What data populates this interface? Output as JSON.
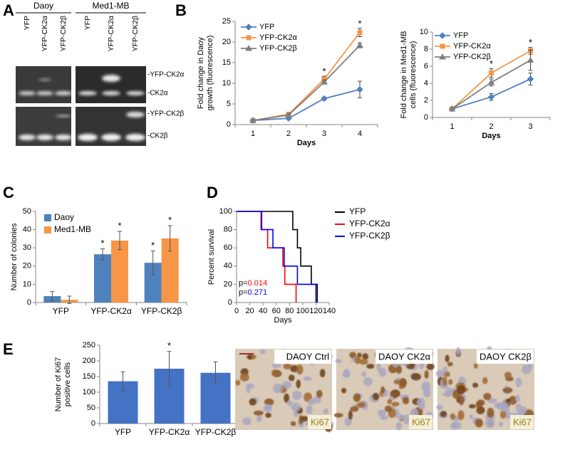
{
  "panel_labels": [
    "A",
    "B",
    "C",
    "D",
    "E"
  ],
  "blot": {
    "groups": [
      "Daoy",
      "Med1-MB"
    ],
    "lanes": [
      "YFP",
      "YFP-CK2α",
      "YFP-CK2β"
    ],
    "bands": [
      "-YFP-CK2α",
      "-CK2α",
      "-YFP-CK2β",
      "-CK2β"
    ]
  },
  "chart_data": [
    {
      "type": "line",
      "ylabel": [
        "Fold change in Daoy",
        "growth (fluorescence)"
      ],
      "xlabel": "Days",
      "categories": [
        "1",
        "2",
        "3",
        "4"
      ],
      "ylim": [
        0,
        25
      ],
      "yticks": [
        0,
        5,
        10,
        15,
        20,
        25
      ],
      "series": [
        {
          "name": "YFP",
          "color": "#4f81bd",
          "marker": "diamond",
          "values": [
            1,
            1.5,
            6.3,
            8.5
          ],
          "errors": [
            0.2,
            0.2,
            0.3,
            2
          ]
        },
        {
          "name": "YFP-CK2α",
          "color": "#f79646",
          "marker": "square",
          "values": [
            1,
            2.5,
            11,
            22.3
          ],
          "errors": [
            0.2,
            0.3,
            0.7,
            1
          ]
        },
        {
          "name": "YFP-CK2β",
          "color": "#7f7f7f",
          "marker": "triangle",
          "values": [
            1,
            2.3,
            10.3,
            19.2
          ],
          "errors": [
            0.2,
            0.3,
            0.5,
            0.6
          ]
        }
      ],
      "stars": [
        null,
        null,
        "*",
        "*"
      ]
    },
    {
      "type": "line",
      "ylabel": [
        "Fold change in Med1-MB",
        "cells (fluorescence)"
      ],
      "xlabel": "Days",
      "categories": [
        "1",
        "2",
        "3"
      ],
      "ylim": [
        0,
        10
      ],
      "yticks": [
        0,
        2,
        4,
        6,
        8,
        10
      ],
      "series": [
        {
          "name": "YFP",
          "color": "#4f81bd",
          "marker": "diamond",
          "values": [
            1,
            2.4,
            4.5
          ],
          "errors": [
            0.1,
            0.4,
            0.7
          ]
        },
        {
          "name": "YFP-CK2α",
          "color": "#f79646",
          "marker": "square",
          "values": [
            1,
            5.2,
            7.8
          ],
          "errors": [
            0.1,
            0.5,
            0.4
          ]
        },
        {
          "name": "YFP-CK2β",
          "color": "#7f7f7f",
          "marker": "triangle",
          "values": [
            1,
            4.1,
            6.7
          ],
          "errors": [
            0.1,
            0.4,
            1.2
          ]
        }
      ],
      "stars": [
        null,
        "*",
        "*"
      ]
    },
    {
      "type": "bar",
      "ylabel": [
        "Number of colonies"
      ],
      "categories": [
        "YFP",
        "YFP-CK2α",
        "YFP-CK2β"
      ],
      "ylim": [
        0,
        50
      ],
      "yticks": [
        0,
        10,
        20,
        30,
        40,
        50
      ],
      "series": [
        {
          "name": "Daoy",
          "color": "#4f81bd",
          "values": [
            3.5,
            26.5,
            21.8
          ],
          "errors": [
            2.5,
            3,
            6.5
          ],
          "stars": [
            null,
            "*",
            "*"
          ]
        },
        {
          "name": "Med1-MB",
          "color": "#f79646",
          "values": [
            1.5,
            34,
            35.2
          ],
          "errors": [
            2,
            5,
            7
          ],
          "stars": [
            null,
            "*",
            "*"
          ]
        }
      ]
    },
    {
      "type": "step",
      "ylabel": [
        "Percent survival"
      ],
      "xlabel": "Days",
      "xlim": [
        0,
        140
      ],
      "xticks": [
        0,
        20,
        40,
        60,
        80,
        100,
        120,
        140
      ],
      "ylim": [
        0,
        100
      ],
      "yticks": [
        0,
        20,
        40,
        60,
        80,
        100
      ],
      "series": [
        {
          "name": "YFP",
          "color": "#000000",
          "x": [
            0,
            85,
            92,
            97,
            113,
            122
          ],
          "values": [
            100,
            80,
            60,
            40,
            20,
            0
          ]
        },
        {
          "name": "YFP-CK2α",
          "color": "#ff0000",
          "x": [
            0,
            37,
            47,
            70,
            73,
            90
          ],
          "values": [
            100,
            80,
            60,
            40,
            20,
            0
          ]
        },
        {
          "name": "YFP-CK2β",
          "color": "#0000ff",
          "x": [
            0,
            38,
            55,
            72,
            92,
            120
          ],
          "values": [
            100,
            80,
            60,
            40,
            20,
            0
          ]
        }
      ],
      "pvalues": [
        {
          "prefix": "p=",
          "value": "0.014",
          "color": "#ff0000"
        },
        {
          "prefix": "p=",
          "value": "0.271",
          "color": "#0000ff"
        }
      ]
    },
    {
      "type": "bar",
      "ylabel": [
        "Number of Ki67",
        "positive cells"
      ],
      "categories": [
        "YFP",
        "YFP-CK2α",
        "YFP-CK2β"
      ],
      "ylim": [
        0,
        250
      ],
      "yticks": [
        0,
        50,
        100,
        150,
        200,
        250
      ],
      "series": [
        {
          "color": "#4472c4",
          "values": [
            135,
            175,
            162
          ],
          "errors": [
            30,
            55,
            35
          ],
          "stars": [
            null,
            "*",
            null
          ]
        }
      ]
    }
  ],
  "micrographs": [
    {
      "label": "DAOY Ctrl",
      "stain": "Ki67"
    },
    {
      "label": "DAOY CK2α",
      "stain": "Ki67"
    },
    {
      "label": "DAOY CK2β",
      "stain": "Ki67"
    }
  ]
}
